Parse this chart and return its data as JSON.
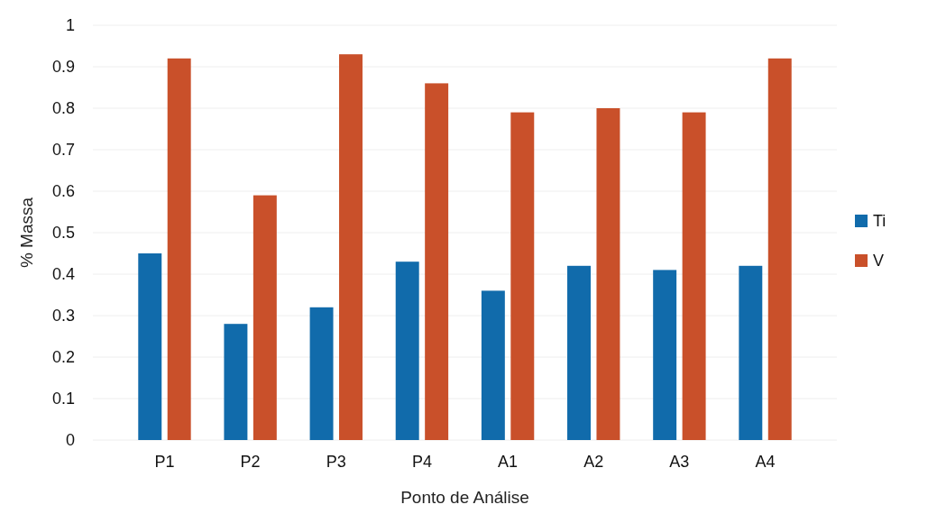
{
  "chart_data": {
    "type": "bar",
    "xlabel": "Ponto de Análise",
    "ylabel": "% Massa",
    "categories": [
      "P1",
      "P2",
      "P3",
      "P4",
      "A1",
      "A2",
      "A3",
      "A4"
    ],
    "series": [
      {
        "name": "Ti",
        "color": "#116bab",
        "values": [
          0.45,
          0.28,
          0.32,
          0.43,
          0.36,
          0.42,
          0.41,
          0.42
        ]
      },
      {
        "name": "V",
        "color": "#c9502a",
        "values": [
          0.92,
          0.59,
          0.93,
          0.86,
          0.79,
          0.8,
          0.79,
          0.92
        ]
      }
    ],
    "ylim": [
      0,
      1
    ],
    "yticks": [
      0,
      0.1,
      0.2,
      0.3,
      0.4,
      0.5,
      0.6,
      0.7,
      0.8,
      0.9,
      1
    ],
    "grid": "y",
    "legend": "right"
  }
}
